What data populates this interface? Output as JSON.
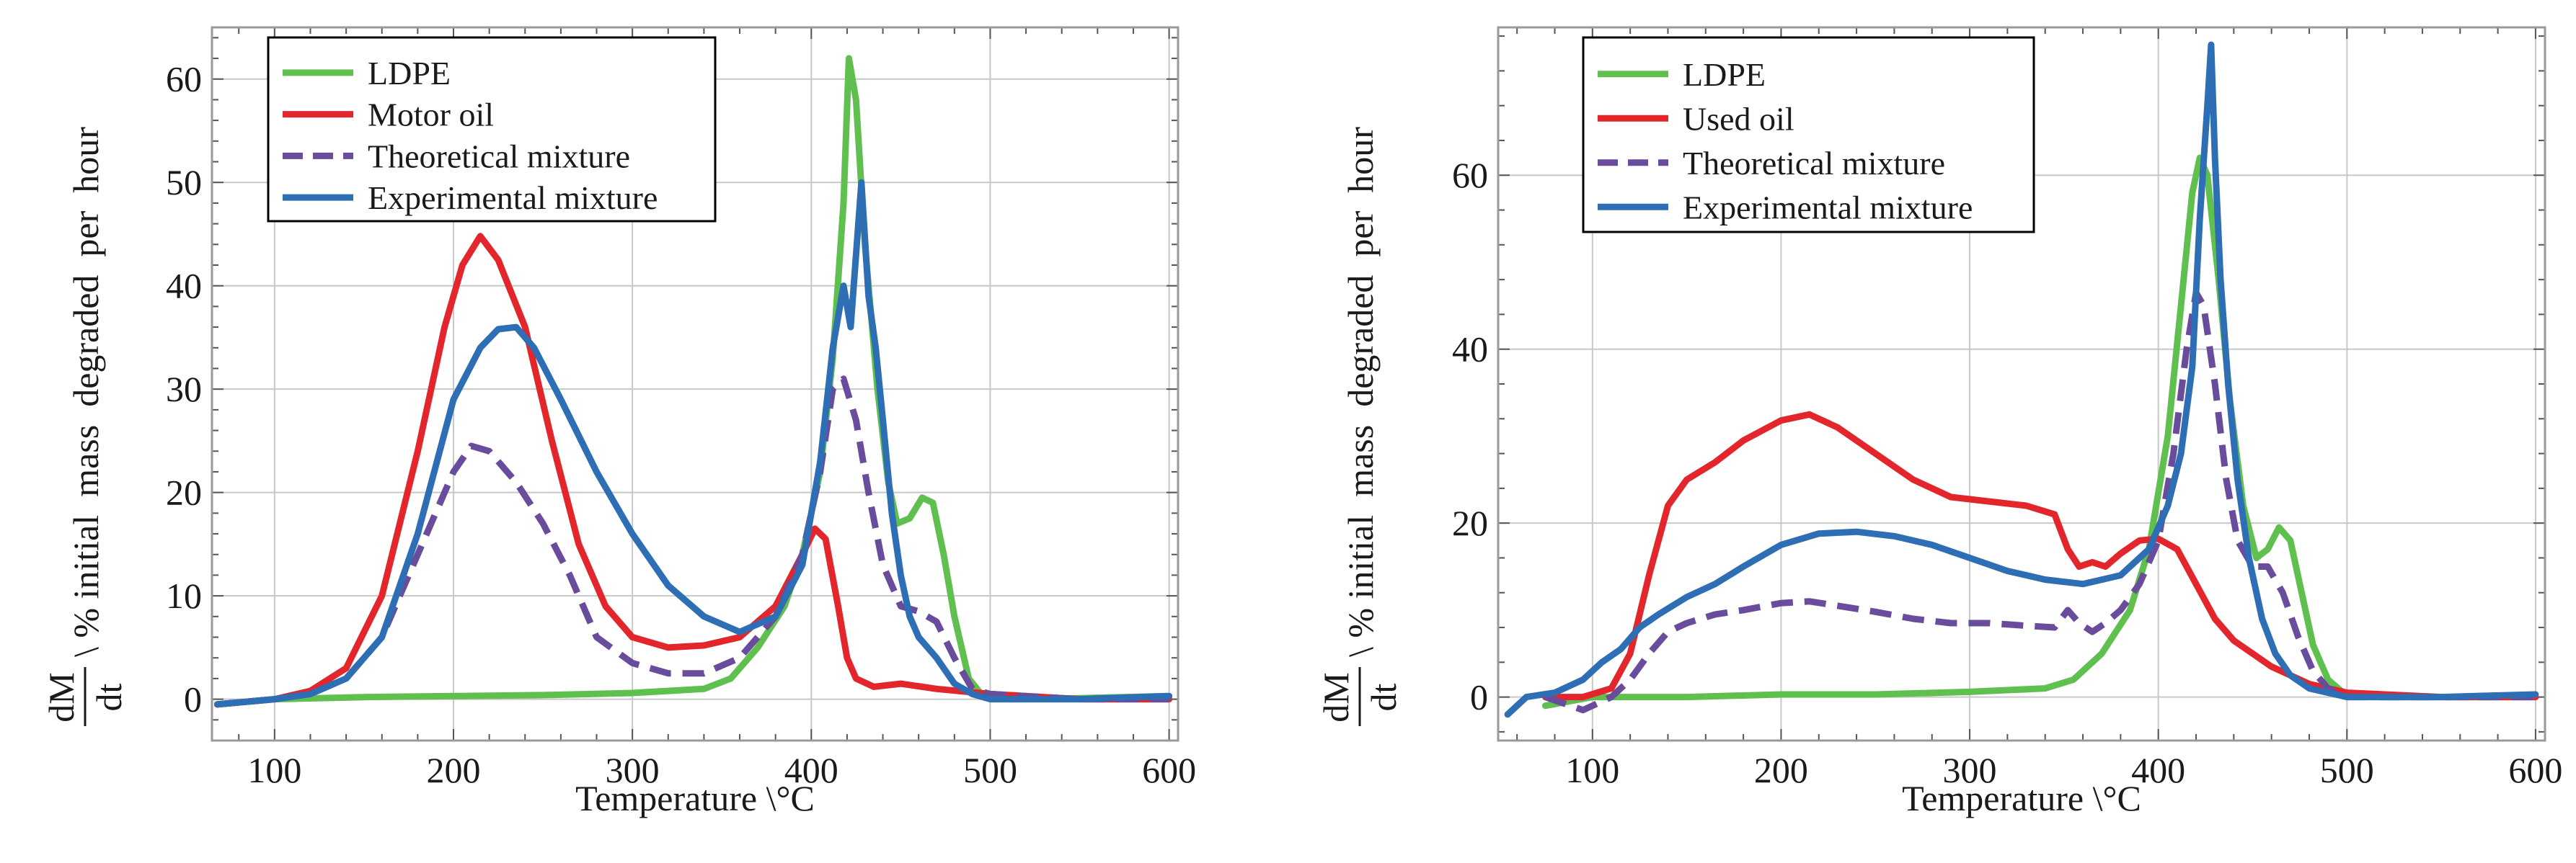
{
  "colors": {
    "ldpe": "#5fbf4f",
    "oil": "#e3262b",
    "theoretical": "#6a4c9c",
    "experimental": "#2e6eb5",
    "grid": "#c8c8c8",
    "frame": "#9a9a9a"
  },
  "chart_data": [
    {
      "type": "line",
      "title": "",
      "xlabel": "Temperature \\°C",
      "ylabel": {
        "fraction_num": "dM",
        "fraction_den": "dt",
        "text": "\\ % initial  mass  degraded  per  hour"
      },
      "xlim": [
        65,
        605
      ],
      "ylim": [
        -4,
        65
      ],
      "xticks": [
        100,
        200,
        300,
        400,
        500,
        600
      ],
      "yticks": [
        0,
        10,
        20,
        30,
        40,
        50,
        60
      ],
      "grid": true,
      "legend_position": "top-left",
      "series": [
        {
          "name": "LDPE",
          "color_key": "ldpe",
          "dash": false,
          "x": [
            68,
            100,
            150,
            200,
            250,
            300,
            340,
            355,
            370,
            385,
            395,
            405,
            412,
            418,
            421,
            425,
            430,
            437,
            443,
            448,
            455,
            462,
            468,
            474,
            480,
            488,
            495,
            510,
            550,
            600
          ],
          "y": [
            -0.5,
            0,
            0.2,
            0.3,
            0.4,
            0.6,
            1.0,
            2.0,
            5.0,
            9.0,
            14.0,
            22.0,
            33.0,
            48.0,
            62.0,
            58.0,
            44.0,
            30.0,
            21.0,
            17.0,
            17.5,
            19.5,
            19.0,
            14.0,
            8.0,
            2.0,
            0.5,
            0.0,
            0.1,
            0.3
          ]
        },
        {
          "name": "Motor oil",
          "color_key": "oil",
          "dash": false,
          "x": [
            68,
            100,
            120,
            140,
            160,
            180,
            195,
            205,
            215,
            225,
            240,
            255,
            270,
            285,
            300,
            320,
            340,
            360,
            380,
            395,
            402,
            408,
            415,
            420,
            425,
            435,
            450,
            470,
            500,
            550,
            600
          ],
          "y": [
            -0.5,
            0,
            0.8,
            3.0,
            10.0,
            24.0,
            36.0,
            42.0,
            44.8,
            42.5,
            36.0,
            25.0,
            15.0,
            9.0,
            6.0,
            5.0,
            5.2,
            6.0,
            9.0,
            14.0,
            16.5,
            15.5,
            9.0,
            4.0,
            2.0,
            1.2,
            1.5,
            1.0,
            0.5,
            0.0,
            0.0
          ]
        },
        {
          "name": "Theoretical mixture",
          "color_key": "theoretical",
          "dash": true,
          "x": [
            68,
            100,
            120,
            140,
            160,
            180,
            200,
            210,
            220,
            235,
            250,
            265,
            280,
            300,
            320,
            340,
            360,
            380,
            395,
            405,
            412,
            418,
            425,
            432,
            440,
            450,
            460,
            470,
            480,
            490,
            500,
            550,
            600
          ],
          "y": [
            -0.5,
            0,
            0.5,
            2.0,
            6.0,
            14.0,
            22.0,
            24.5,
            24.0,
            21.0,
            17.0,
            12.0,
            6.0,
            3.5,
            2.5,
            2.5,
            4.0,
            8.0,
            14.0,
            22.0,
            30.0,
            31.0,
            27.0,
            20.0,
            13.0,
            9.0,
            8.5,
            7.5,
            4.0,
            1.0,
            0.5,
            0.0,
            0.0
          ]
        },
        {
          "name": "Experimental mixture",
          "color_key": "experimental",
          "dash": false,
          "x": [
            68,
            100,
            120,
            140,
            160,
            180,
            200,
            215,
            225,
            235,
            245,
            260,
            280,
            300,
            320,
            340,
            360,
            380,
            395,
            405,
            412,
            418,
            422,
            428,
            432,
            436,
            440,
            445,
            450,
            455,
            460,
            470,
            480,
            490,
            500,
            550,
            600
          ],
          "y": [
            -0.5,
            0,
            0.5,
            2.0,
            6.0,
            16.0,
            29.0,
            34.0,
            35.8,
            36.0,
            34.0,
            29.0,
            22.0,
            16.0,
            11.0,
            8.0,
            6.5,
            8.0,
            13.0,
            23.0,
            34.0,
            40.0,
            36.0,
            50.0,
            39.0,
            34.0,
            27.0,
            18.0,
            12.0,
            8.0,
            6.0,
            4.0,
            1.5,
            0.5,
            0.0,
            0.0,
            0.3
          ]
        }
      ],
      "legend": {
        "entries": [
          "LDPE",
          "Motor oil",
          "Theoretical mixture",
          "Experimental mixture"
        ]
      }
    },
    {
      "type": "line",
      "title": "",
      "xlabel": "Temperature \\°C",
      "ylabel": {
        "fraction_num": "dM",
        "fraction_den": "dt",
        "text": "\\ % initial  mass  degraded  per  hour"
      },
      "xlim": [
        50,
        605
      ],
      "ylim": [
        -5,
        77
      ],
      "xticks": [
        100,
        200,
        300,
        400,
        500,
        600
      ],
      "yticks": [
        0,
        20,
        40,
        60
      ],
      "grid": true,
      "legend_position": "top-left",
      "series": [
        {
          "name": "LDPE",
          "color_key": "ldpe",
          "dash": false,
          "x": [
            75,
            100,
            150,
            200,
            250,
            300,
            340,
            355,
            370,
            385,
            395,
            405,
            412,
            418,
            422,
            426,
            432,
            438,
            445,
            452,
            458,
            464,
            470,
            476,
            482,
            490,
            498,
            520,
            560,
            600
          ],
          "y": [
            -1,
            0,
            0,
            0.3,
            0.3,
            0.6,
            1.0,
            2.0,
            5.0,
            10.0,
            17.0,
            30.0,
            45.0,
            58.0,
            62.0,
            60.0,
            48.0,
            34.0,
            22.0,
            16.0,
            17.0,
            19.5,
            18.0,
            12.0,
            6.0,
            2.0,
            0.5,
            0.0,
            0.0,
            0.0
          ]
        },
        {
          "name": "Used oil",
          "color_key": "oil",
          "dash": false,
          "x": [
            75,
            95,
            110,
            120,
            130,
            140,
            150,
            165,
            180,
            200,
            215,
            230,
            250,
            270,
            290,
            310,
            330,
            345,
            352,
            358,
            365,
            372,
            380,
            390,
            400,
            410,
            420,
            430,
            440,
            450,
            460,
            480,
            500,
            550,
            600
          ],
          "y": [
            0,
            0,
            1.0,
            5.0,
            14.0,
            22.0,
            25.0,
            27.0,
            29.5,
            31.8,
            32.5,
            31.0,
            28.0,
            25.0,
            23.0,
            22.5,
            22.0,
            21.0,
            17.0,
            15.0,
            15.5,
            15.0,
            16.5,
            18.0,
            18.2,
            17.0,
            13.0,
            9.0,
            6.5,
            5.0,
            3.5,
            1.5,
            0.5,
            0.0,
            0.0
          ]
        },
        {
          "name": "Theoretical mixture",
          "color_key": "theoretical",
          "dash": true,
          "x": [
            75,
            95,
            110,
            120,
            130,
            140,
            150,
            165,
            180,
            200,
            215,
            230,
            250,
            270,
            290,
            310,
            330,
            345,
            352,
            358,
            365,
            372,
            380,
            390,
            400,
            408,
            415,
            420,
            424,
            430,
            436,
            442,
            450,
            458,
            466,
            474,
            482,
            490,
            500,
            550,
            600
          ],
          "y": [
            0,
            -1.5,
            0,
            2.0,
            5.0,
            7.5,
            8.5,
            9.5,
            10.0,
            10.8,
            11.0,
            10.5,
            9.8,
            9.0,
            8.5,
            8.5,
            8.2,
            8.0,
            10.0,
            8.5,
            7.5,
            8.5,
            10.0,
            13.0,
            18.0,
            28.0,
            40.0,
            46.5,
            45.0,
            36.0,
            25.0,
            18.0,
            15.0,
            15.0,
            12.0,
            7.0,
            3.0,
            1.0,
            0.0,
            0.0,
            0.0
          ]
        },
        {
          "name": "Experimental mixture",
          "color_key": "experimental",
          "dash": false,
          "x": [
            55,
            65,
            80,
            95,
            105,
            115,
            125,
            135,
            150,
            165,
            180,
            200,
            220,
            240,
            260,
            280,
            300,
            320,
            340,
            360,
            380,
            395,
            405,
            412,
            418,
            422,
            426,
            428,
            430,
            433,
            437,
            442,
            448,
            455,
            462,
            470,
            480,
            490,
            500,
            550,
            600
          ],
          "y": [
            -2,
            0,
            0.5,
            2.0,
            4.0,
            5.5,
            8.0,
            9.5,
            11.5,
            13.0,
            15.0,
            17.5,
            18.8,
            19.0,
            18.5,
            17.5,
            16.0,
            14.5,
            13.5,
            13.0,
            14.0,
            17.0,
            22.0,
            28.0,
            38.0,
            55.0,
            68.0,
            75.0,
            62.0,
            48.0,
            36.0,
            25.0,
            16.0,
            9.0,
            5.0,
            2.5,
            1.0,
            0.5,
            0.0,
            0.0,
            0.3
          ]
        }
      ],
      "legend": {
        "entries": [
          "LDPE",
          "Used oil",
          "Theoretical mixture",
          "Experimental mixture"
        ]
      }
    }
  ]
}
